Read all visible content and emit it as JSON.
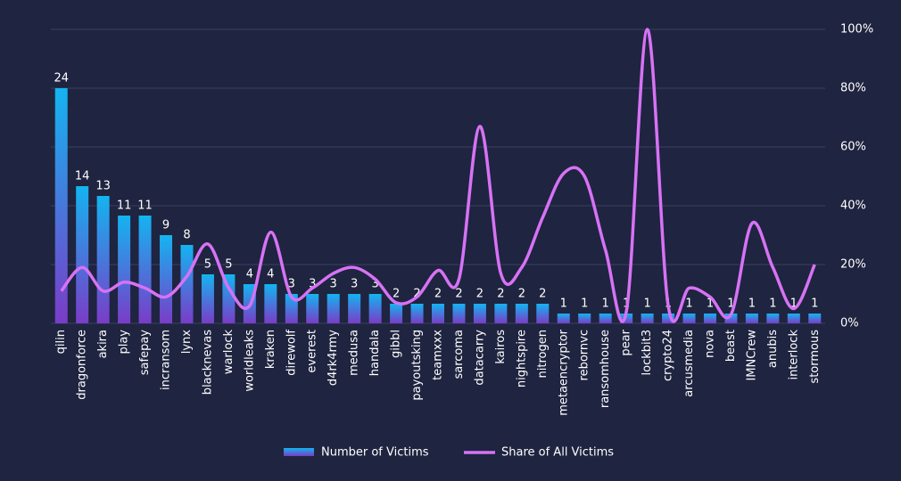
{
  "chart_data": {
    "type": "bar_line",
    "categories": [
      "qilin",
      "dragonforce",
      "akira",
      "play",
      "safepay",
      "incransom",
      "lynx",
      "blacknevas",
      "warlock",
      "worldleaks",
      "kraken",
      "direwolf",
      "everest",
      "d4rk4rmy",
      "medusa",
      "handala",
      "gibbl",
      "payoutsking",
      "teamxxx",
      "sarcoma",
      "datacarry",
      "kairos",
      "nightspire",
      "nitrogen",
      "metaencryptor",
      "rebornvc",
      "ransomhouse",
      "pear",
      "lockbit3",
      "crypto24",
      "arcusmedia",
      "nova",
      "beast",
      "IMNCrew",
      "anubis",
      "interlock",
      "stormous"
    ],
    "series": [
      {
        "name": "Number of Victims",
        "type": "bar",
        "color": "#14b4f0",
        "values": [
          24,
          14,
          13,
          11,
          11,
          9,
          8,
          5,
          5,
          4,
          4,
          3,
          3,
          3,
          3,
          3,
          2,
          2,
          2,
          2,
          2,
          2,
          2,
          2,
          1,
          1,
          1,
          1,
          1,
          1,
          1,
          1,
          1,
          1,
          1,
          1,
          1
        ]
      },
      {
        "name": "Share of All Victims",
        "type": "line",
        "axis": "y2",
        "color": "#d772f5",
        "values": [
          11,
          19,
          11,
          14,
          12,
          9,
          16,
          27,
          12,
          6,
          31,
          9,
          12,
          17,
          19,
          15,
          7,
          9,
          18,
          15,
          67,
          17,
          19,
          36,
          51,
          50,
          25,
          4,
          100,
          6,
          12,
          9,
          3,
          34,
          19,
          5,
          20
        ]
      }
    ],
    "ylim": [
      0,
      30
    ],
    "y2lim": [
      0,
      100
    ],
    "y2ticks": [
      {
        "value": 0,
        "label": "0%"
      },
      {
        "value": 20,
        "label": "20%"
      },
      {
        "value": 40,
        "label": "40%"
      },
      {
        "value": 60,
        "label": "60%"
      },
      {
        "value": 80,
        "label": "80%"
      },
      {
        "value": 100,
        "label": "100%"
      }
    ],
    "grid": true,
    "legend": "bottom"
  }
}
